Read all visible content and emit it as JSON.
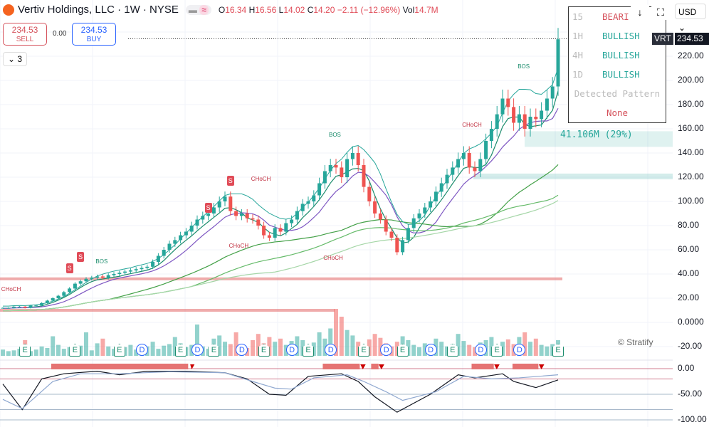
{
  "header": {
    "title": "Vertiv Holdings, LLC · 1W · NYSE",
    "o_label": "O",
    "o": "16.34",
    "h_label": "H",
    "h": "16.56",
    "l_label": "L",
    "l": "14.02",
    "c_label": "C",
    "c": "14.20",
    "change": "−2.11 (−12.96%)",
    "vol_label": "Vol",
    "vol": "14.7M"
  },
  "trade": {
    "sell_price": "234.53",
    "sell_label": "SELL",
    "spread": "0.00",
    "buy_price": "234.53",
    "buy_label": "BUY"
  },
  "collapse": {
    "label": "⌄ 3"
  },
  "panel": {
    "rows": [
      {
        "tf": "15",
        "signal": "BEARI",
        "cls": "bear"
      },
      {
        "tf": "1H",
        "signal": "BULLISH",
        "cls": "bull"
      },
      {
        "tf": "4H",
        "signal": "BULLISH",
        "cls": "bull"
      },
      {
        "tf": "1D",
        "signal": "BULLISH",
        "cls": "bull"
      }
    ],
    "pattern_label": "Detected Pattern",
    "pattern": "None"
  },
  "toolbar": {
    "down_icon": "↓",
    "fullscreen_icon": "⛶",
    "currency": "USD ⌄"
  },
  "price_tag": {
    "symbol": "VRT",
    "price": "234.53"
  },
  "volume_zone": "41.106M (29%)",
  "watermark": "© Stratify",
  "colors": {
    "up": "#26a69a",
    "down": "#ef5350",
    "accent": "#2962ff"
  },
  "chart_data": [
    {
      "type": "candlestick",
      "title": "Vertiv Holdings, LLC · 1W · NYSE",
      "ylim": [
        -20,
        250
      ],
      "yticks": [
        "240.00",
        "220.00",
        "200.00",
        "180.00",
        "160.00",
        "140.00",
        "120.00",
        "100.00",
        "80.00",
        "60.00",
        "40.00",
        "20.00",
        "0.0000",
        "-20.00"
      ],
      "ytick_values": [
        240,
        220,
        200,
        180,
        160,
        140,
        120,
        100,
        80,
        60,
        40,
        20,
        0,
        -20
      ],
      "closes": [
        12,
        12,
        13,
        13,
        12,
        14,
        14,
        16,
        18,
        20,
        22,
        25,
        28,
        32,
        34,
        36,
        37,
        38,
        37,
        39,
        40,
        41,
        42,
        43,
        44,
        45,
        46,
        50,
        55,
        60,
        65,
        68,
        72,
        75,
        80,
        85,
        88,
        90,
        95,
        100,
        104,
        92,
        88,
        90,
        86,
        85,
        80,
        72,
        70,
        78,
        75,
        82,
        85,
        92,
        98,
        100,
        105,
        115,
        125,
        130,
        128,
        120,
        135,
        140,
        130,
        112,
        100,
        90,
        85,
        75,
        70,
        58,
        68,
        78,
        86,
        90,
        95,
        100,
        108,
        115,
        122,
        128,
        135,
        140,
        128,
        125,
        135,
        150,
        160,
        172,
        185,
        178,
        165,
        172,
        160,
        170,
        168,
        175,
        185,
        195,
        234
      ],
      "volume": [
        8,
        6,
        7,
        9,
        20,
        6,
        8,
        12,
        10,
        25,
        14,
        9,
        11,
        8,
        13,
        30,
        7,
        16,
        22,
        12,
        9,
        10,
        11,
        14,
        8,
        10,
        12,
        18,
        9,
        13,
        15,
        24,
        16,
        11,
        14,
        40,
        12,
        9,
        22,
        26,
        18,
        15,
        30,
        12,
        10,
        20,
        28,
        16,
        24,
        18,
        22,
        14,
        19,
        25,
        20,
        12,
        17,
        30,
        22,
        35,
        60,
        50,
        33,
        26,
        18,
        14,
        21,
        28,
        23,
        16,
        12,
        18,
        25,
        20,
        14,
        11,
        16,
        13,
        22,
        18,
        12,
        15,
        28,
        19,
        14,
        11,
        17,
        20,
        24,
        13,
        18,
        21,
        15,
        24,
        30,
        18,
        22,
        14,
        12,
        15,
        20
      ],
      "annotations": [
        {
          "text": "CHoCH",
          "week": 1,
          "price": 27
        },
        {
          "text": "BOS",
          "week": 18,
          "price": 50
        },
        {
          "text": "S",
          "week": 12,
          "price": 45,
          "kind": "sell"
        },
        {
          "text": "S",
          "week": 14,
          "price": 54,
          "kind": "sell"
        },
        {
          "text": "S",
          "week": 37,
          "price": 95,
          "kind": "sell"
        },
        {
          "text": "S",
          "week": 41,
          "price": 117,
          "kind": "sell"
        },
        {
          "text": "CHoCH",
          "week": 46,
          "price": 118
        },
        {
          "text": "CHoCH",
          "week": 42,
          "price": 63
        },
        {
          "text": "CHoCH",
          "week": 59,
          "price": 53
        },
        {
          "text": "BOS",
          "week": 60,
          "price": 155
        },
        {
          "text": "CHoCH",
          "week": 84,
          "price": 163
        },
        {
          "text": "BOS",
          "week": 94,
          "price": 211
        }
      ],
      "events": [
        {
          "t": "E",
          "week": 4
        },
        {
          "t": "E",
          "week": 13
        },
        {
          "t": "E",
          "week": 21
        },
        {
          "t": "D",
          "week": 25
        },
        {
          "t": "E",
          "week": 32
        },
        {
          "t": "D",
          "week": 35
        },
        {
          "t": "E",
          "week": 38
        },
        {
          "t": "D",
          "week": 43
        },
        {
          "t": "E",
          "week": 47
        },
        {
          "t": "D",
          "week": 52
        },
        {
          "t": "E",
          "week": 55
        },
        {
          "t": "D",
          "week": 59
        },
        {
          "t": "E",
          "week": 65
        },
        {
          "t": "D",
          "week": 69
        },
        {
          "t": "E",
          "week": 72
        },
        {
          "t": "D",
          "week": 77
        },
        {
          "t": "E",
          "week": 81
        },
        {
          "t": "D",
          "week": 86
        },
        {
          "t": "E",
          "week": 89
        },
        {
          "t": "D",
          "week": 93
        },
        {
          "t": "E",
          "week": 100
        }
      ]
    },
    {
      "type": "line",
      "title": "oscillator",
      "ylim": [
        -100,
        10
      ],
      "yticks": [
        "0.00",
        "-50.00",
        "-100.00"
      ],
      "ytick_values": [
        0,
        -50,
        -100
      ],
      "levels": [
        0,
        -20,
        -50,
        -80,
        -100
      ],
      "series": [
        {
          "name": "fast",
          "color": "#131722",
          "points": [
            [
              0,
              -30
            ],
            [
              3.5,
              -80
            ],
            [
              7,
              -20
            ],
            [
              11,
              -10
            ],
            [
              17,
              -5
            ],
            [
              21,
              -12
            ],
            [
              26,
              -5
            ],
            [
              33,
              -5
            ],
            [
              40,
              -8
            ],
            [
              44,
              -20
            ],
            [
              48,
              -50
            ],
            [
              51,
              -52
            ],
            [
              55,
              -15
            ],
            [
              61,
              -10
            ],
            [
              64,
              -25
            ],
            [
              67,
              -55
            ],
            [
              71,
              -85
            ],
            [
              77,
              -50
            ],
            [
              82,
              -12
            ],
            [
              85,
              -18
            ],
            [
              90,
              -10
            ],
            [
              92,
              -25
            ],
            [
              96,
              -37
            ],
            [
              100,
              -22
            ]
          ]
        },
        {
          "name": "slow",
          "color": "#8fa8d0",
          "points": [
            [
              0,
              -60
            ],
            [
              3.5,
              -78
            ],
            [
              9,
              -25
            ],
            [
              14,
              -10
            ],
            [
              21,
              -10
            ],
            [
              30,
              -6
            ],
            [
              40,
              -8
            ],
            [
              45,
              -25
            ],
            [
              49,
              -38
            ],
            [
              52,
              -40
            ],
            [
              56,
              -18
            ],
            [
              62,
              -12
            ],
            [
              65,
              -25
            ],
            [
              69,
              -45
            ],
            [
              72,
              -62
            ],
            [
              78,
              -45
            ],
            [
              83,
              -15
            ],
            [
              88,
              -20
            ],
            [
              93,
              -18
            ],
            [
              100,
              -12
            ]
          ]
        }
      ]
    }
  ]
}
